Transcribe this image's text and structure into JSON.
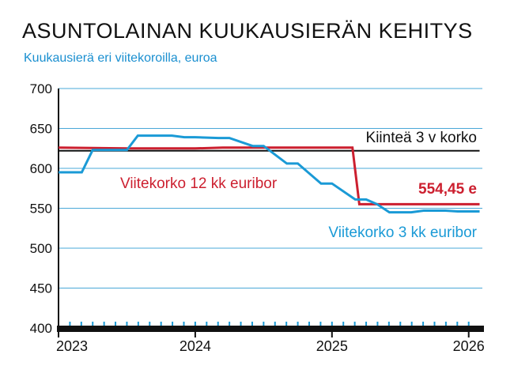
{
  "chart_data": {
    "type": "line",
    "title": "ASUNTOLAINAN KUUKAUSIERÄN KEHITYS",
    "subtitle": "Kuukausierä eri viitekoroilla, euroa",
    "ylim": [
      400,
      700
    ],
    "yticks": [
      "700",
      "650",
      "600",
      "550",
      "500",
      "450",
      "400"
    ],
    "xlim": [
      2023.0,
      2026.1
    ],
    "xticks": [
      {
        "value": 2023,
        "label": "2023"
      },
      {
        "value": 2024,
        "label": "2024"
      },
      {
        "value": 2025,
        "label": "2025"
      },
      {
        "value": 2026,
        "label": "2026"
      }
    ],
    "grid": true,
    "series": [
      {
        "name": "Kiinteä 3 v korko",
        "color": "#111111",
        "x": [
          2023.0,
          2026.08
        ],
        "y": [
          622,
          622
        ]
      },
      {
        "name": "Viitekorko 12 kk euribor",
        "color": "#cc1f2f",
        "x": [
          2023.0,
          2023.5,
          2023.75,
          2024.0,
          2024.2,
          2024.5,
          2024.75,
          2025.0,
          2025.15,
          2025.2,
          2025.5,
          2025.75,
          2026.0,
          2026.08
        ],
        "y": [
          626,
          625,
          625,
          625,
          626,
          626,
          626,
          626,
          626,
          555,
          555,
          555,
          555,
          555
        ]
      },
      {
        "name": "Viitekorko 3 kk euribor",
        "color": "#1a9ad6",
        "x": [
          2023.0,
          2023.17,
          2023.25,
          2023.5,
          2023.58,
          2023.83,
          2023.92,
          2024.0,
          2024.17,
          2024.25,
          2024.42,
          2024.5,
          2024.67,
          2024.75,
          2024.92,
          2025.0,
          2025.17,
          2025.25,
          2025.33,
          2025.42,
          2025.5,
          2025.58,
          2025.67,
          2025.75,
          2025.83,
          2025.92,
          2026.0,
          2026.08
        ],
        "y": [
          595,
          595,
          623,
          623,
          641,
          641,
          639,
          639,
          638,
          638,
          628,
          628,
          606,
          606,
          581,
          581,
          561,
          561,
          555,
          545,
          545,
          545,
          547,
          547,
          547,
          546,
          546,
          546
        ]
      }
    ],
    "annotations": [
      {
        "text": "Kiinteä 3 v korko",
        "color": "#111111"
      },
      {
        "text": "Viitekorko 12 kk euribor",
        "color": "#cc1f2f"
      },
      {
        "text": "554,45 e",
        "color": "#cc1f2f"
      },
      {
        "text": "Viitekorko 3 kk euribor",
        "color": "#1a9ad6"
      }
    ]
  }
}
